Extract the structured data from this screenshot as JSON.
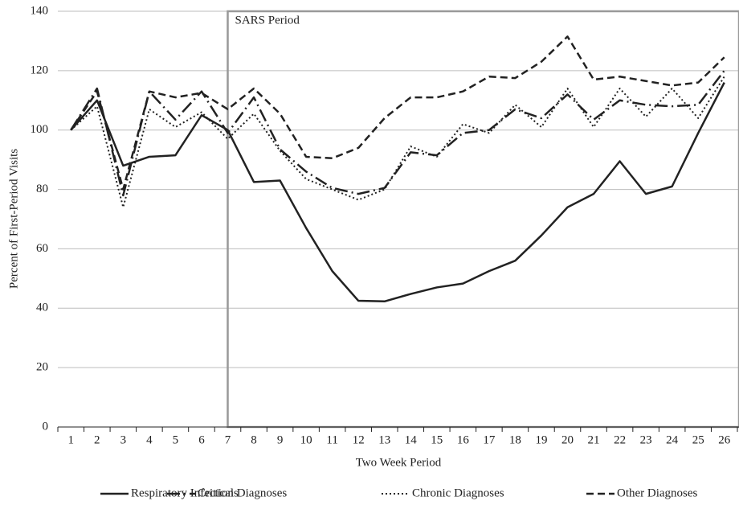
{
  "chart_data": {
    "type": "line",
    "annotation": "SARS Period",
    "annotation_start": 7,
    "xlabel": "Two Week Period",
    "ylabel": "Percent of First-Period Visits",
    "categories": [
      1,
      2,
      3,
      4,
      5,
      6,
      7,
      8,
      9,
      10,
      11,
      12,
      13,
      14,
      15,
      16,
      17,
      18,
      19,
      20,
      21,
      22,
      23,
      24,
      25,
      26
    ],
    "ylim": [
      0,
      140
    ],
    "yticks": [
      0,
      20,
      40,
      60,
      80,
      100,
      120,
      140
    ],
    "grid": true,
    "legend": "bottom",
    "series": [
      {
        "name": "Respiratory Infections",
        "color": "#222222",
        "line_style": "solid",
        "values": [
          100,
          110,
          88,
          91,
          91.5,
          105,
          100,
          82.5,
          83,
          67,
          52.5,
          42.5,
          42.3,
          44.8,
          47,
          48.3,
          52.5,
          56,
          64.5,
          74,
          78.5,
          89.5,
          78.5,
          81,
          99,
          116
        ]
      },
      {
        "name": "Critical Diagnoses",
        "color": "#222222",
        "line_style": "dashdot",
        "values": [
          100,
          114,
          78,
          113,
          103.5,
          113,
          99,
          111,
          93.5,
          86,
          80.5,
          78.5,
          80.5,
          92.5,
          91.5,
          99,
          100,
          107,
          104,
          112,
          103.5,
          110,
          108.5,
          108,
          108.5,
          120
        ]
      },
      {
        "name": "Chronic Diagnoses",
        "color": "#222222",
        "line_style": "dotted",
        "values": [
          100,
          108,
          74,
          107,
          101,
          106,
          97,
          105.5,
          93,
          83.5,
          80,
          76.5,
          80,
          94.5,
          91,
          102,
          99,
          108.5,
          101,
          114,
          101,
          114,
          104.5,
          114,
          104,
          118
        ]
      },
      {
        "name": "Other Diagnoses",
        "color": "#222222",
        "line_style": "dashed",
        "values": [
          100,
          113,
          80,
          113,
          111,
          112.5,
          107,
          114,
          105.5,
          91,
          90.5,
          94,
          104,
          111,
          111,
          113,
          118,
          117.5,
          123,
          131.5,
          117,
          118,
          116.5,
          115,
          116,
          124.5
        ]
      }
    ]
  }
}
